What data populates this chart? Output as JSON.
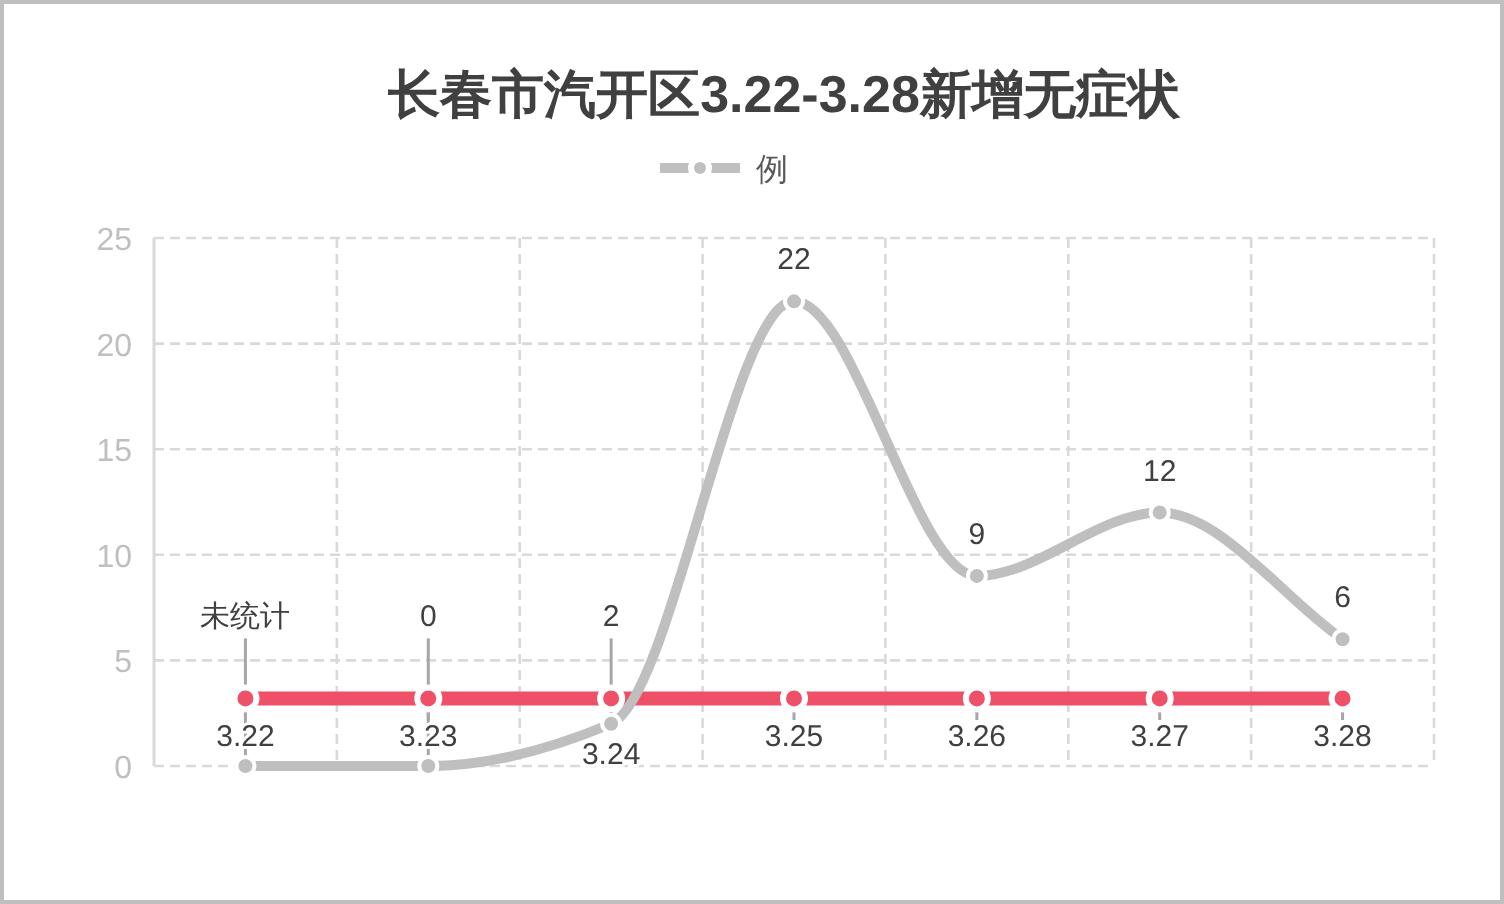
{
  "chart_data": {
    "type": "line",
    "title": "长春市汽开区3.22-3.28新增无症状",
    "categories": [
      "3.22",
      "3.23",
      "3.24",
      "3.25",
      "3.26",
      "3.27",
      "3.28"
    ],
    "series": [
      {
        "color": "#ee5068",
        "values": [
          3.2,
          3.2,
          3.2,
          3.2,
          3.2,
          3.2,
          3.2
        ]
      },
      {
        "name": "例",
        "color": "#bfbfbf",
        "values": [
          0,
          0,
          2,
          22,
          9,
          12,
          6
        ],
        "value_labels": [
          "未统计",
          "0",
          "2",
          "22",
          "9",
          "12",
          "6"
        ]
      }
    ],
    "ylim": [
      0,
      25
    ],
    "yticks": [
      0,
      5,
      10,
      15,
      20,
      25
    ],
    "grid": true,
    "legend": "top",
    "marker": "circle",
    "line_style": "solid"
  }
}
